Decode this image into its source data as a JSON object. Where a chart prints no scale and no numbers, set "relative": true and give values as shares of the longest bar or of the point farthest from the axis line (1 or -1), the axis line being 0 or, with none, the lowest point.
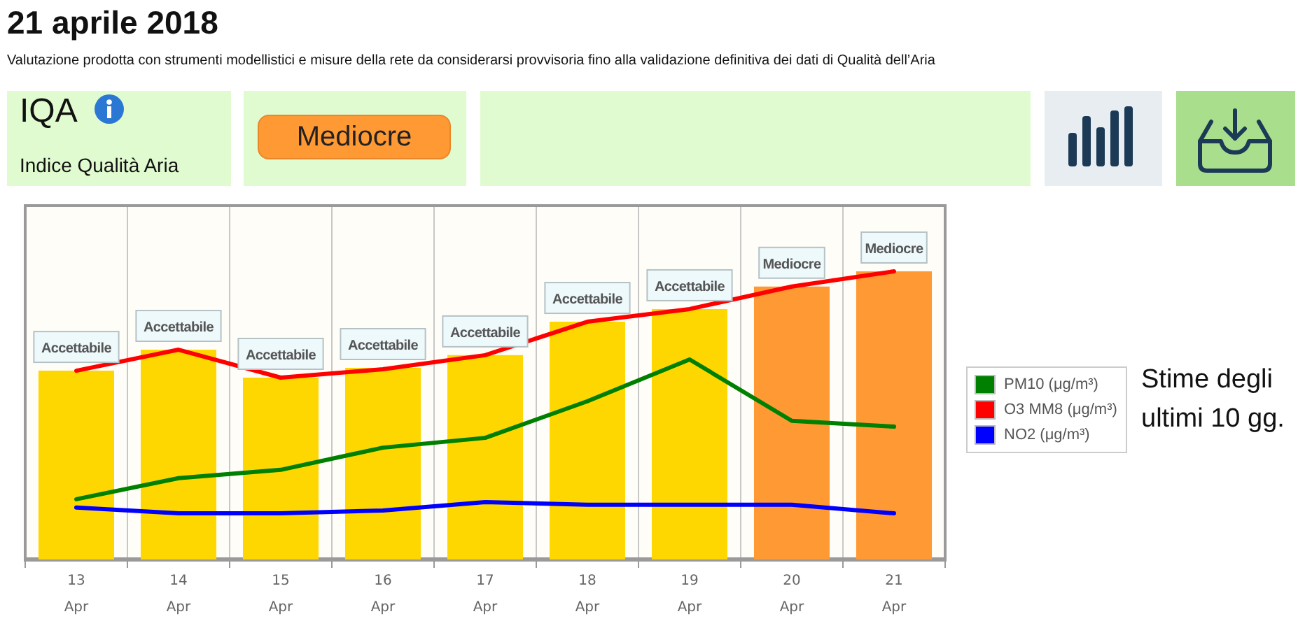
{
  "chart_data": {
    "type": "bar",
    "title": "21 aprile 2018",
    "subtitle": "Valutazione prodotta con strumenti modellistici e misure della rete da considerarsi provvisoria fino alla validazione definitiva dei dati di Qualità dell’Aria",
    "annotations": [
      "IQA",
      "Indice Qualità Aria",
      "Mediocre",
      "Stime degli ultimi 10 gg.",
      {
        "text": "Accettabile",
        "x": "13 Apr",
        "y": 0.655
      },
      {
        "text": "Accettabile",
        "x": "14 Apr",
        "y": 0.728
      },
      {
        "text": "Accettabile",
        "x": "15 Apr",
        "y": 0.631
      },
      {
        "text": "Accettabile",
        "x": "16 Apr",
        "y": 0.665
      },
      {
        "text": "Accettabile",
        "x": "17 Apr",
        "y": 0.709
      },
      {
        "text": "Accettabile",
        "x": "18 Apr",
        "y": 0.825
      },
      {
        "text": "Accettabile",
        "x": "19 Apr",
        "y": 0.869
      },
      {
        "text": "Mediocre",
        "x": "20 Apr",
        "y": 0.947
      },
      {
        "text": "Mediocre",
        "x": "21 Apr",
        "y": 1.0
      }
    ],
    "categories": [
      "13 Apr",
      "14 Apr",
      "15 Apr",
      "16 Apr",
      "17 Apr",
      "18 Apr",
      "19 Apr",
      "20 Apr",
      "21 Apr"
    ],
    "relative": true,
    "grid": "x",
    "legend": "right",
    "series": [
      {
        "colors": [
          "#ffd700",
          "#ffd700",
          "#ffd700",
          "#ffd700",
          "#ffd700",
          "#ffd700",
          "#ffd700",
          "#ff9933",
          "#ff9933"
        ],
        "values": [
          0.655,
          0.728,
          0.631,
          0.665,
          0.709,
          0.825,
          0.869,
          0.947,
          1.0
        ]
      },
      {
        "type": "line",
        "name": "PM10 (μg/m³)",
        "color": "#008000",
        "values": [
          0.209,
          0.282,
          0.311,
          0.388,
          0.422,
          0.549,
          0.694,
          0.481,
          0.461
        ]
      },
      {
        "type": "line",
        "name": "O3 MM8 (μg/m³)",
        "color": "#ff0000",
        "values": [
          0.655,
          0.728,
          0.631,
          0.66,
          0.709,
          0.825,
          0.869,
          0.947,
          1.0
        ]
      },
      {
        "type": "line",
        "name": "NO2 (μg/m³)",
        "color": "#0000ff",
        "values": [
          0.18,
          0.16,
          0.16,
          0.17,
          0.199,
          0.19,
          0.19,
          0.19,
          0.16
        ]
      }
    ]
  }
}
